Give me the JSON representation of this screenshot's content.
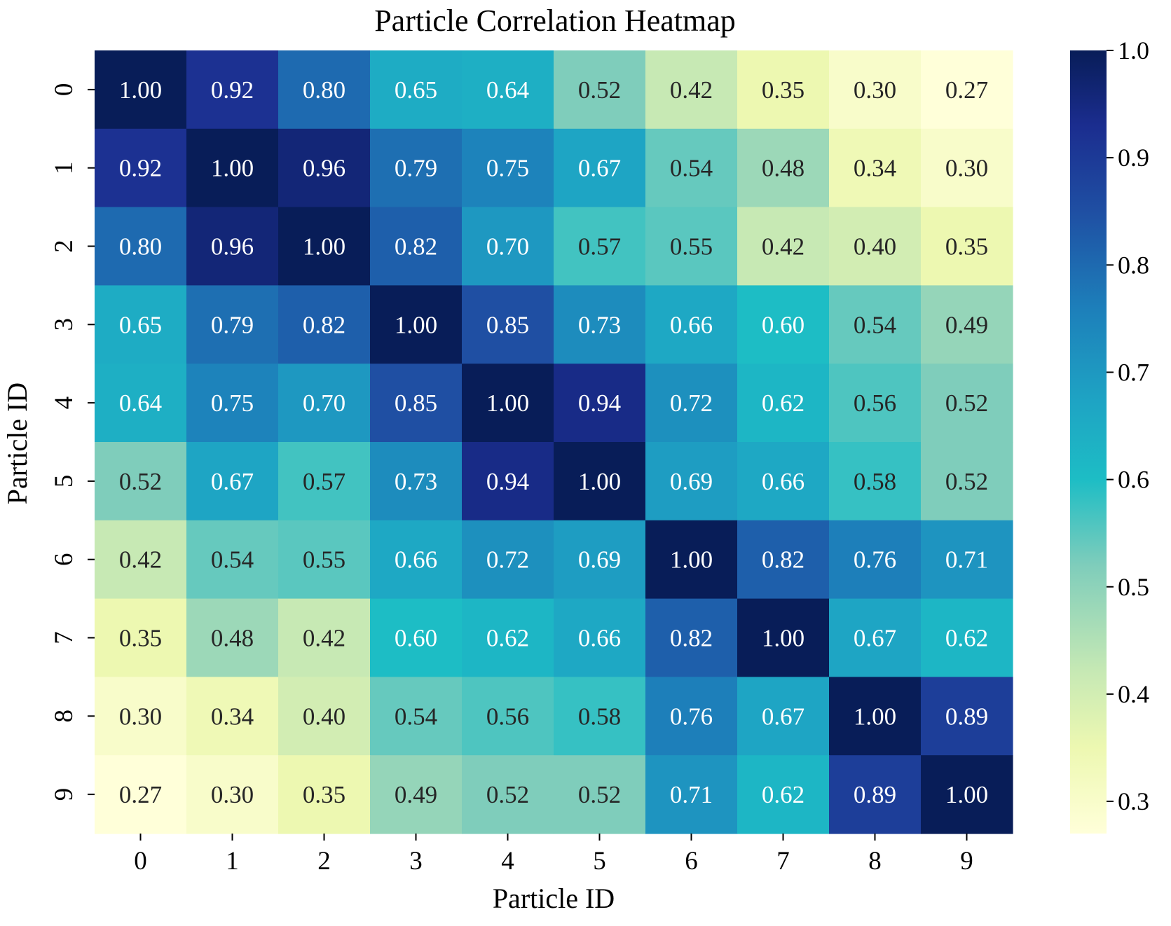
{
  "chart_data": {
    "type": "heatmap",
    "title": "Particle Correlation Heatmap",
    "xlabel": "Particle ID",
    "ylabel": "Particle ID",
    "x_categories": [
      "0",
      "1",
      "2",
      "3",
      "4",
      "5",
      "6",
      "7",
      "8",
      "9"
    ],
    "y_categories": [
      "0",
      "1",
      "2",
      "3",
      "4",
      "5",
      "6",
      "7",
      "8",
      "9"
    ],
    "values": [
      [
        1.0,
        0.92,
        0.8,
        0.65,
        0.64,
        0.52,
        0.42,
        0.35,
        0.3,
        0.27
      ],
      [
        0.92,
        1.0,
        0.96,
        0.79,
        0.75,
        0.67,
        0.54,
        0.48,
        0.34,
        0.3
      ],
      [
        0.8,
        0.96,
        1.0,
        0.82,
        0.7,
        0.57,
        0.55,
        0.42,
        0.4,
        0.35
      ],
      [
        0.65,
        0.79,
        0.82,
        1.0,
        0.85,
        0.73,
        0.66,
        0.6,
        0.54,
        0.49
      ],
      [
        0.64,
        0.75,
        0.7,
        0.85,
        1.0,
        0.94,
        0.72,
        0.62,
        0.56,
        0.52
      ],
      [
        0.52,
        0.67,
        0.57,
        0.73,
        0.94,
        1.0,
        0.69,
        0.66,
        0.58,
        0.52
      ],
      [
        0.42,
        0.54,
        0.55,
        0.66,
        0.72,
        0.69,
        1.0,
        0.82,
        0.76,
        0.71
      ],
      [
        0.35,
        0.48,
        0.42,
        0.6,
        0.62,
        0.66,
        0.82,
        1.0,
        0.67,
        0.62
      ],
      [
        0.3,
        0.34,
        0.4,
        0.54,
        0.56,
        0.58,
        0.76,
        0.67,
        1.0,
        0.89
      ],
      [
        0.27,
        0.3,
        0.35,
        0.49,
        0.52,
        0.52,
        0.71,
        0.62,
        0.89,
        1.0
      ]
    ],
    "value_format_decimals": 2,
    "colormap": "YlGnBu",
    "colorbar": {
      "vmin": 0.27,
      "vmax": 1.0,
      "ticks": [
        0.3,
        0.4,
        0.5,
        0.6,
        0.7,
        0.8,
        0.9,
        1.0
      ],
      "tick_labels": [
        "0.3",
        "0.4",
        "0.5",
        "0.6",
        "0.7",
        "0.8",
        "0.9",
        "1.0"
      ]
    },
    "colormap_stops": [
      {
        "v": 0.27,
        "color": "#ffffd9"
      },
      {
        "v": 0.35,
        "color": "#edf8b1"
      },
      {
        "v": 0.42,
        "color": "#c7e9b4"
      },
      {
        "v": 0.52,
        "color": "#7fcdbb"
      },
      {
        "v": 0.6,
        "color": "#1dbdc5"
      },
      {
        "v": 0.67,
        "color": "#1ea5c4"
      },
      {
        "v": 0.76,
        "color": "#1d7fba"
      },
      {
        "v": 0.85,
        "color": "#1f4fa3"
      },
      {
        "v": 0.93,
        "color": "#1b2d8f"
      },
      {
        "v": 1.0,
        "color": "#081d58"
      }
    ],
    "text_dark_color": "#262626",
    "text_light_color": "#ffffff",
    "text_light_threshold": 0.6,
    "grid": false
  }
}
